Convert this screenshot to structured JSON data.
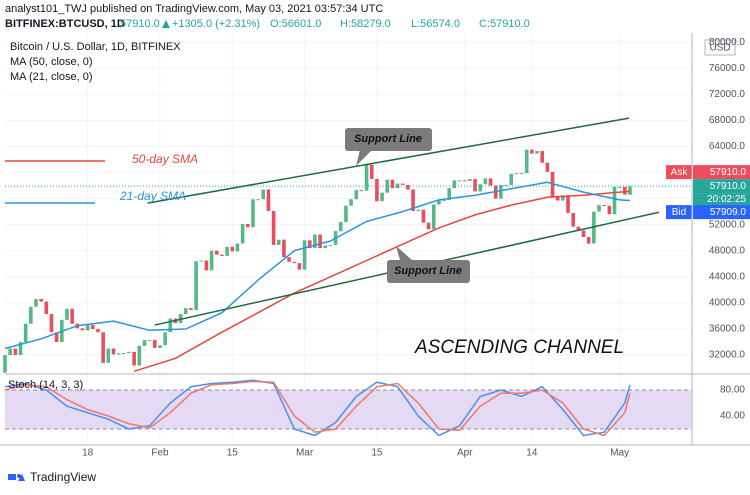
{
  "header": {
    "byline": "analyst101_TWJ published on TradingView.com, May 03, 2021 03:57:34 UTC",
    "symbol": "BITFINEX:BTCUSD, 1D",
    "last": "57910.0",
    "change": "+1305.0 (+2.31%)",
    "open": "O:56601.0",
    "high": "H:58279.0",
    "low": "L:56574.0",
    "close": "C:57910.0"
  },
  "chart_data": {
    "type": "candlestick",
    "title": "Bitcoin / U.S. Dollar, 1D, BITFINEX",
    "currency": "USD",
    "up_color": "#53b987",
    "down_color": "#eb4d5c",
    "grid": true,
    "x": [
      2,
      3,
      4,
      5,
      6,
      7,
      8,
      9,
      10,
      11,
      12,
      13,
      14,
      15,
      16,
      17,
      18,
      19,
      20,
      21,
      22,
      23,
      24,
      25,
      26,
      27,
      28,
      29,
      30,
      31,
      32,
      33,
      34,
      35,
      36,
      37,
      38,
      39,
      40,
      41,
      42,
      43,
      44,
      45,
      46,
      47,
      48,
      49,
      50,
      51,
      52,
      53,
      54,
      55,
      56,
      57,
      58,
      59,
      60,
      61,
      62,
      63,
      64,
      65,
      66,
      67,
      68,
      69,
      70,
      71,
      72,
      73,
      74,
      75,
      76,
      77,
      78,
      79,
      80,
      81,
      82,
      83,
      84,
      85,
      86,
      87,
      88,
      89,
      90,
      91,
      92,
      93,
      94,
      95,
      96,
      97,
      98,
      99,
      100,
      101,
      102,
      103,
      104,
      105,
      106,
      107,
      108,
      109,
      110,
      111,
      112,
      113,
      114,
      115,
      116,
      117,
      118,
      119,
      120,
      121,
      122,
      123
    ],
    "open": [
      29300,
      32000,
      33000,
      32000,
      34000,
      36800,
      39400,
      40600,
      40200,
      38300,
      35500,
      34000,
      37400,
      39100,
      36800,
      36100,
      35800,
      36600,
      36000,
      35500,
      30800,
      33000,
      32100,
      32300,
      32300,
      32500,
      30400,
      33400,
      34300,
      34300,
      33100,
      33500,
      35500,
      37600,
      36900,
      38300,
      39200,
      38900,
      46400,
      46500,
      45000,
      48000,
      47400,
      47200,
      48600,
      47900,
      49100,
      52100,
      51600,
      55900,
      55900,
      57400,
      54100,
      48900,
      49700,
      47000,
      46300,
      46100,
      45100,
      49600,
      48400,
      50500,
      48400,
      48800,
      48900,
      51000,
      52400,
      54900,
      55900,
      57300,
      57200,
      61200,
      59000,
      55600,
      56900,
      58900,
      57600,
      58300,
      58100,
      57400,
      54100,
      54300,
      52300,
      51300,
      55100,
      55800,
      55800,
      57600,
      58800,
      58800,
      58700,
      59000,
      57100,
      58200,
      59100,
      58000,
      56000,
      58100,
      58100,
      59800,
      59900,
      59900,
      63500,
      62900,
      63300,
      61500,
      60100,
      56200,
      55700,
      56500,
      53800,
      51700,
      51100,
      50100,
      49100,
      54000,
      55000,
      54900,
      53600,
      57800,
      57800,
      56601
    ],
    "close": [
      32000,
      33000,
      32000,
      34000,
      36800,
      39400,
      40600,
      40200,
      38300,
      35500,
      34000,
      37400,
      39100,
      36800,
      36100,
      35800,
      36600,
      36000,
      35500,
      30800,
      33000,
      32100,
      32300,
      32300,
      32500,
      30400,
      33400,
      34300,
      34300,
      33100,
      33500,
      35500,
      37600,
      36900,
      38300,
      39200,
      38900,
      46400,
      46500,
      45000,
      48000,
      47400,
      47200,
      48600,
      47900,
      49100,
      52100,
      51600,
      55900,
      55900,
      57400,
      54100,
      48900,
      49700,
      47000,
      46300,
      46100,
      45100,
      49600,
      48400,
      50500,
      48400,
      48800,
      48900,
      51000,
      52400,
      54900,
      55900,
      57300,
      57200,
      61200,
      59000,
      55600,
      56900,
      58900,
      57600,
      58300,
      58100,
      57400,
      54100,
      54300,
      52300,
      51300,
      55100,
      55800,
      55800,
      57600,
      58800,
      58800,
      58700,
      59000,
      57100,
      58200,
      59100,
      58000,
      56000,
      58100,
      58100,
      59800,
      59900,
      59900,
      63500,
      62900,
      63300,
      61500,
      60100,
      56200,
      55700,
      56500,
      53800,
      51700,
      51100,
      50100,
      49100,
      54000,
      55000,
      54900,
      53600,
      57800,
      57800,
      56601,
      57910
    ],
    "xlim": [
      2,
      135
    ],
    "xticks": [
      {
        "value": 18,
        "label": "18"
      },
      {
        "value": 32,
        "label": "Feb"
      },
      {
        "value": 46,
        "label": "15"
      },
      {
        "value": 60,
        "label": "Mar"
      },
      {
        "value": 74,
        "label": "15"
      },
      {
        "value": 91,
        "label": "Apr"
      },
      {
        "value": 104,
        "label": "14"
      },
      {
        "value": 121,
        "label": "May"
      }
    ],
    "ylim": [
      29400,
      81400
    ],
    "yticks": [
      {
        "value": 32000,
        "label": "32000.0"
      },
      {
        "value": 36000,
        "label": "36000.0"
      },
      {
        "value": 40000,
        "label": "40000.0"
      },
      {
        "value": 44000,
        "label": "44000.0"
      },
      {
        "value": 48000,
        "label": "48000.0"
      },
      {
        "value": 52000,
        "label": "52000.0"
      },
      {
        "value": 56000,
        "label": "56000.0"
      },
      {
        "value": 60000,
        "label": "60000.0"
      },
      {
        "value": 64000,
        "label": "64000.0"
      },
      {
        "value": 68000,
        "label": "68000.0"
      },
      {
        "value": 72000,
        "label": "72000.0"
      },
      {
        "value": 76000,
        "label": "76000.0"
      },
      {
        "value": 80000,
        "label": "80000.0"
      }
    ],
    "series": [
      {
        "name": "MA (50, close, 0)",
        "color": "#e8453c",
        "x": [
          27,
          35,
          44,
          51,
          58,
          65,
          72,
          79,
          86,
          93,
          100,
          107,
          114,
          121,
          123
        ],
        "values": [
          29500,
          31500,
          35500,
          38500,
          41500,
          44000,
          46500,
          49000,
          51500,
          53500,
          55000,
          56200,
          56500,
          57000,
          57100
        ]
      },
      {
        "name": "MA (21, close, 0)",
        "color": "#2c94dc",
        "x": [
          2,
          9,
          16,
          23,
          30,
          37,
          44,
          51,
          58,
          65,
          72,
          79,
          86,
          93,
          100,
          107,
          114,
          121,
          123
        ],
        "values": [
          33000,
          34500,
          36500,
          37200,
          35800,
          36000,
          38500,
          43500,
          48000,
          49500,
          52500,
          54000,
          55800,
          56500,
          57500,
          58500,
          57000,
          55800,
          55700
        ]
      }
    ],
    "ask": {
      "name": "Ask",
      "value": 57910,
      "label": "57910.0"
    },
    "last": {
      "value": 57910,
      "label": "57910.0"
    },
    "countdown": "20:02:25",
    "bid": {
      "name": "Bid",
      "value": 57909,
      "label": "57909.0"
    },
    "channel": [
      {
        "x": [
          29.6,
          122.8
        ],
        "y": [
          55300,
          68340
        ]
      },
      {
        "x": [
          31,
          128.6
        ],
        "y": [
          36600,
          53900
        ]
      }
    ],
    "annotations": {
      "support_upper": "Support Line",
      "support_lower": "Support Line",
      "pattern": "ASCENDING CHANNEL",
      "sma50": "50-day SMA",
      "sma21": "21-day SMA"
    },
    "stoch": {
      "name": "Stoch (14, 3, 3)",
      "ylim": [
        0,
        103
      ],
      "yticks": [
        {
          "value": 80,
          "label": "80.00"
        },
        {
          "value": 40,
          "label": "40.00"
        }
      ],
      "band": [
        20,
        80
      ],
      "series": [
        {
          "color": "#4a8ff0",
          "x": [
            2,
            6,
            10,
            14,
            18,
            22,
            26,
            30,
            34,
            38,
            42,
            46,
            50,
            54,
            58,
            62,
            66,
            70,
            74,
            78,
            82,
            86,
            90,
            94,
            98,
            102,
            106,
            110,
            114,
            118,
            122,
            123
          ],
          "values": [
            85,
            90,
            80,
            55,
            45,
            35,
            20,
            25,
            60,
            85,
            90,
            92,
            95,
            90,
            20,
            10,
            30,
            70,
            92,
            85,
            40,
            10,
            25,
            70,
            80,
            70,
            85,
            50,
            10,
            15,
            60,
            88
          ]
        },
        {
          "color": "#f0786a",
          "x": [
            2,
            6,
            10,
            14,
            18,
            22,
            26,
            30,
            34,
            38,
            42,
            46,
            50,
            54,
            58,
            62,
            66,
            70,
            74,
            78,
            82,
            86,
            90,
            94,
            98,
            102,
            106,
            110,
            114,
            118,
            122,
            123
          ],
          "values": [
            80,
            88,
            85,
            65,
            50,
            40,
            28,
            22,
            45,
            75,
            88,
            90,
            93,
            92,
            40,
            15,
            20,
            55,
            85,
            90,
            60,
            20,
            18,
            55,
            75,
            75,
            80,
            60,
            20,
            10,
            45,
            75
          ]
        }
      ]
    }
  },
  "footer": "TradingView"
}
